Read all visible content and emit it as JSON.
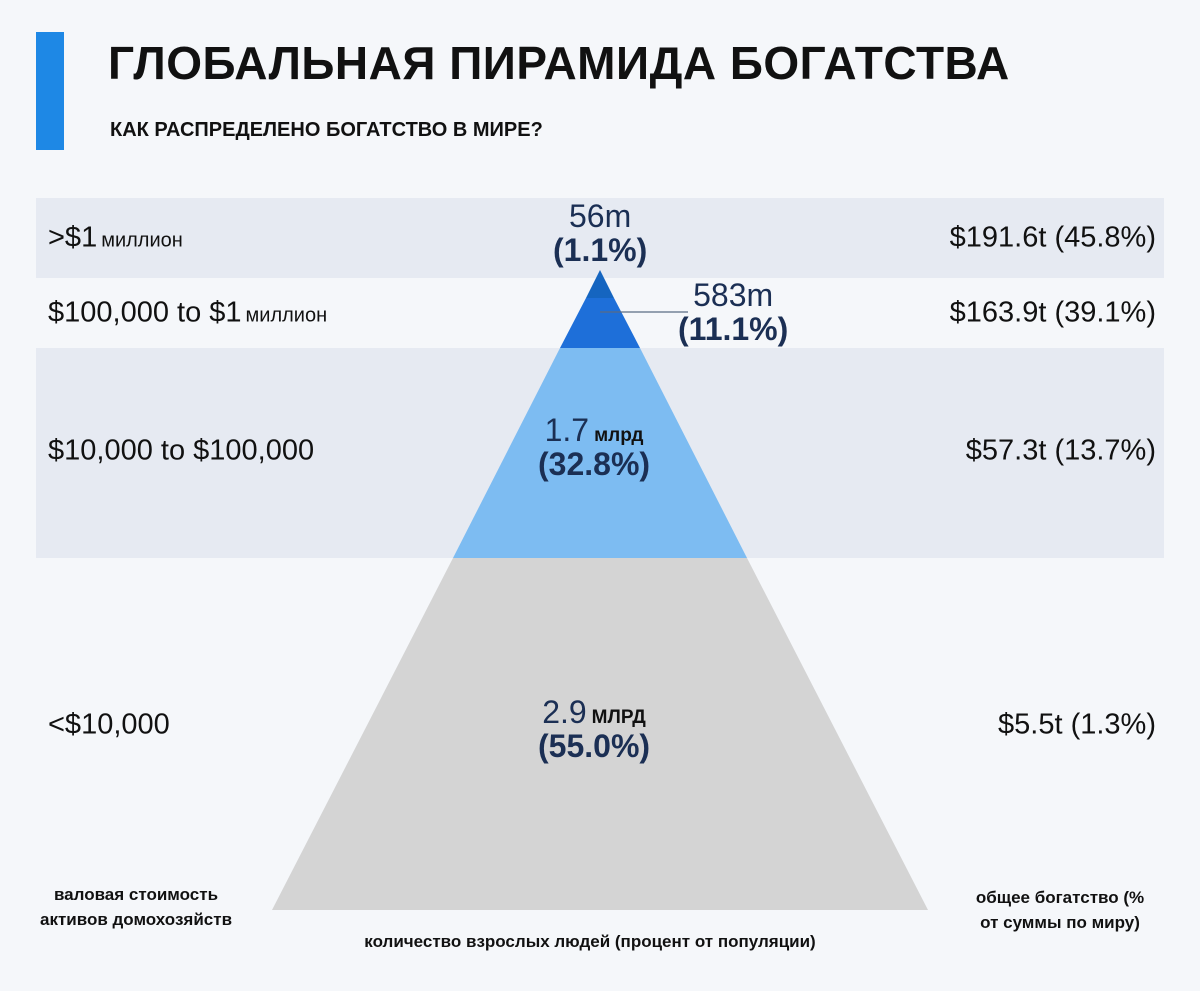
{
  "title": "ГЛОБАЛЬНАЯ ПИРАМИДА БОГАТСТВА",
  "subtitle": "КАК РАСПРЕДЕЛЕНО БОГАТСТВО В МИРЕ?",
  "colors": {
    "accent": "#1e88e5",
    "tier_top": "#1565c0",
    "tier_upper": "#1e6fd9",
    "tier_middle": "#7dbcf2",
    "tier_base": "#d4d4d4",
    "label_text": "#1b2f54"
  },
  "chart_data": {
    "type": "pyramid",
    "left_axis_label": "валовая стоимость активов домохозяйств",
    "bottom_axis_label": "количество взрослых людей (процент от популяции)",
    "right_axis_label": "общее богатство (% от суммы по миру)",
    "tiers": [
      {
        "label": ">$1",
        "label_unit": "миллион",
        "adults": "56m",
        "adults_unit": "",
        "adults_pct": "(1.1%)",
        "adults_pct_value": 1.1,
        "wealth": "$191.6t (45.8%)",
        "wealth_trillions": 191.6,
        "wealth_pct_value": 45.8
      },
      {
        "label": "$100,000 to $1",
        "label_unit": "миллион",
        "adults": "583m",
        "adults_unit": "",
        "adults_pct": "(11.1%)",
        "adults_pct_value": 11.1,
        "wealth": "$163.9t (39.1%)",
        "wealth_trillions": 163.9,
        "wealth_pct_value": 39.1
      },
      {
        "label": "$10,000 to $100,000",
        "label_unit": "",
        "adults": "1.7",
        "adults_unit": "млрд",
        "adults_pct": "(32.8%)",
        "adults_pct_value": 32.8,
        "wealth": "$57.3t (13.7%)",
        "wealth_trillions": 57.3,
        "wealth_pct_value": 13.7
      },
      {
        "label": "<$10,000",
        "label_unit": "",
        "adults": "2.9",
        "adults_unit": "МЛРД",
        "adults_pct": "(55.0%)",
        "adults_pct_value": 55.0,
        "wealth": "$5.5t (1.3%)",
        "wealth_trillions": 5.5,
        "wealth_pct_value": 1.3
      }
    ]
  }
}
